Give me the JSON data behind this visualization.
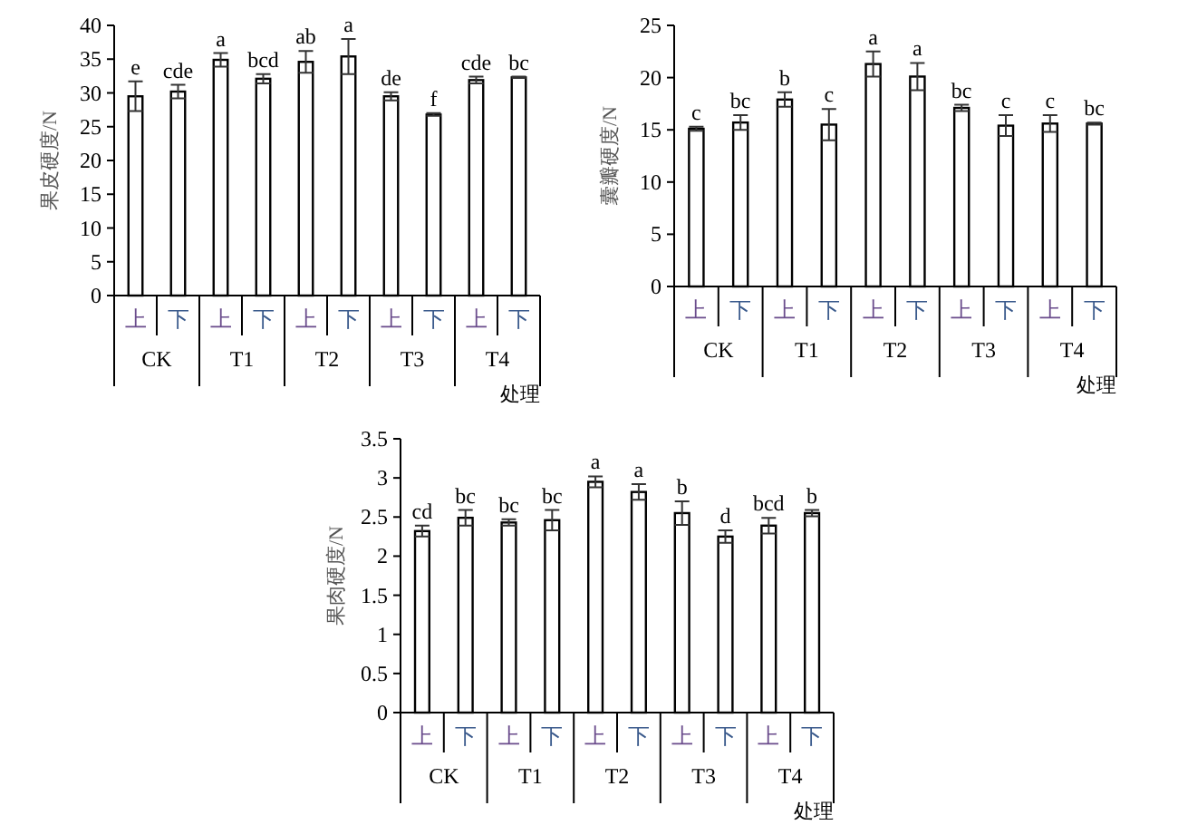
{
  "chart_data": [
    {
      "type": "bar",
      "ylabel": "果皮硬度/N",
      "xlabel": "处理",
      "categories": [
        "上",
        "下",
        "上",
        "下",
        "上",
        "下",
        "上",
        "下",
        "上",
        "下"
      ],
      "annotations": [
        "CK",
        "T1",
        "T2",
        "T3",
        "T4"
      ],
      "ylim": [
        0,
        40
      ],
      "yticks": [
        0,
        5,
        10,
        15,
        20,
        25,
        30,
        35,
        40
      ],
      "grid": false,
      "series": [
        {
          "color": "#ffffff",
          "values": [
            29.5,
            30.2,
            34.9,
            32.1,
            34.6,
            35.4,
            29.5,
            26.8,
            31.9,
            32.3
          ],
          "errors": [
            2.2,
            1.0,
            1.0,
            0.7,
            1.6,
            2.6,
            0.6,
            0.2,
            0.5,
            0.1
          ],
          "value_labels": [
            "e",
            "cde",
            "a",
            "bcd",
            "ab",
            "a",
            "de",
            "f",
            "cde",
            "bc"
          ]
        }
      ]
    },
    {
      "type": "bar",
      "ylabel": "囊瓣硬度/N",
      "xlabel": "处理",
      "categories": [
        "上",
        "下",
        "上",
        "下",
        "上",
        "下",
        "上",
        "下",
        "上",
        "下"
      ],
      "annotations": [
        "CK",
        "T1",
        "T2",
        "T3",
        "T4"
      ],
      "ylim": [
        0,
        25
      ],
      "yticks": [
        0,
        5,
        10,
        15,
        20,
        25
      ],
      "grid": false,
      "series": [
        {
          "color": "#ffffff",
          "values": [
            15.1,
            15.7,
            17.9,
            15.5,
            21.3,
            20.1,
            17.1,
            15.4,
            15.6,
            15.6
          ],
          "errors": [
            0.2,
            0.7,
            0.7,
            1.5,
            1.2,
            1.3,
            0.3,
            1.0,
            0.8,
            0.1
          ],
          "value_labels": [
            "c",
            "bc",
            "b",
            "c",
            "a",
            "a",
            "bc",
            "c",
            "c",
            "bc"
          ]
        }
      ]
    },
    {
      "type": "bar",
      "ylabel": "果肉硬度/N",
      "xlabel": "处理",
      "categories": [
        "上",
        "下",
        "上",
        "下",
        "上",
        "下",
        "上",
        "下",
        "上",
        "下"
      ],
      "annotations": [
        "CK",
        "T1",
        "T2",
        "T3",
        "T4"
      ],
      "ylim": [
        0,
        3.5
      ],
      "yticks": [
        0,
        0.5,
        1,
        1.5,
        2,
        2.5,
        3,
        3.5
      ],
      "grid": false,
      "series": [
        {
          "color": "#ffffff",
          "values": [
            2.32,
            2.49,
            2.43,
            2.46,
            2.95,
            2.82,
            2.55,
            2.25,
            2.39,
            2.55
          ],
          "errors": [
            0.07,
            0.1,
            0.04,
            0.13,
            0.07,
            0.1,
            0.15,
            0.08,
            0.1,
            0.04
          ],
          "value_labels": [
            "cd",
            "bc",
            "bc",
            "bc",
            "a",
            "a",
            "b",
            "d",
            "bcd",
            "b"
          ]
        }
      ]
    }
  ]
}
